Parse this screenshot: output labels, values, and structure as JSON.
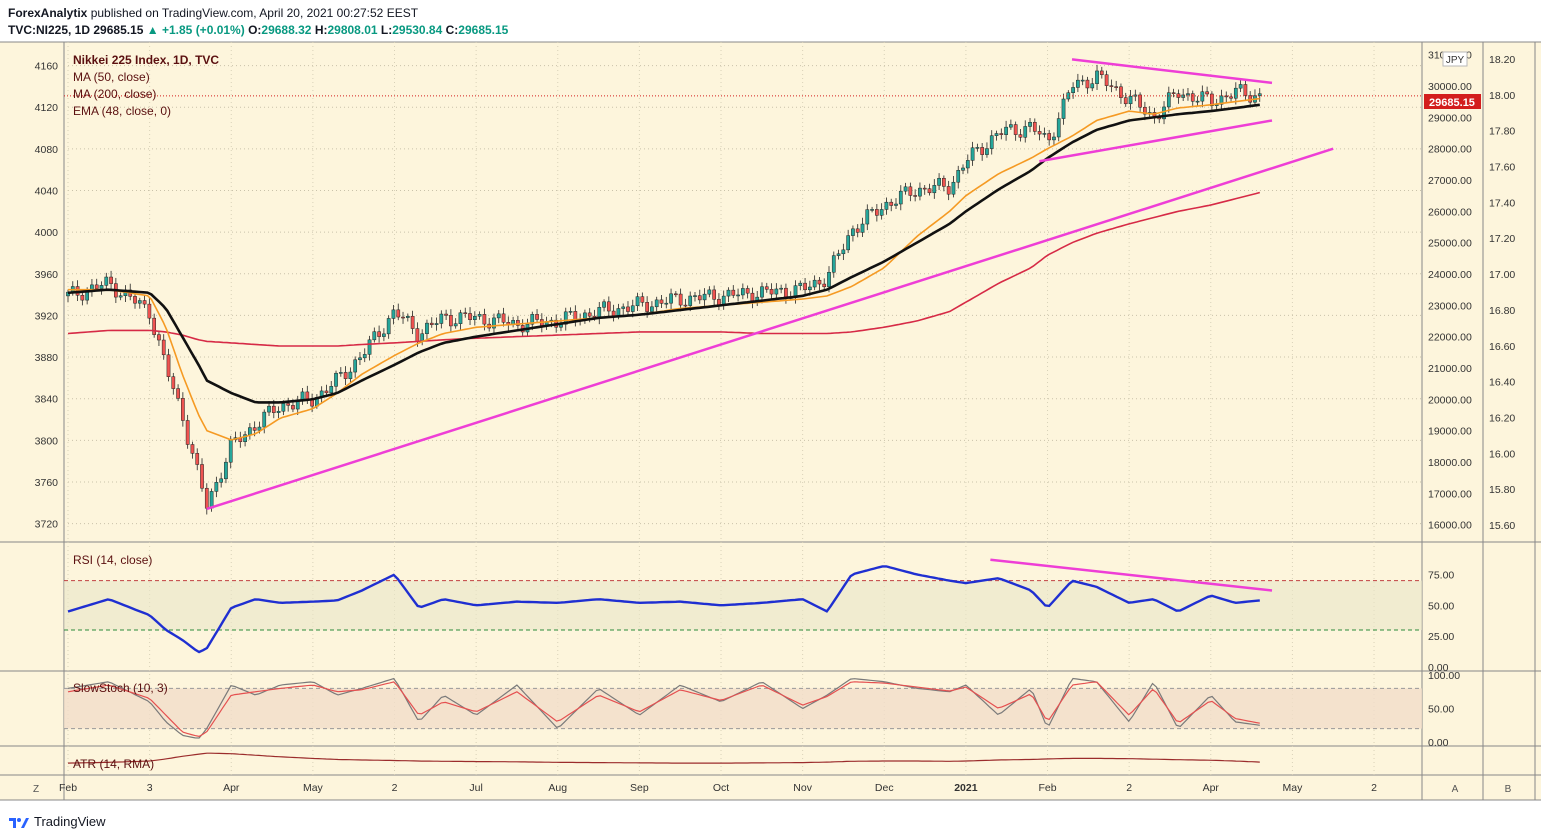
{
  "header": {
    "publisher": "ForexAnalytix",
    "published_line": "published on TradingView.com, April 20, 2021 00:27:52 EEST",
    "symbol": "TVC:NI225, 1D",
    "last": "29685.15",
    "change": "▲ +1.85 (+0.01%)",
    "o_label": "O:",
    "o": "29688.32",
    "h_label": "H:",
    "h": "29808.01",
    "l_label": "L:",
    "l": "29530.84",
    "c_label": "C:",
    "c": "29685.15"
  },
  "legend": {
    "title": "Nikkei 225 Index, 1D, TVC",
    "ma50": "MA (50, close)",
    "ma200": "MA (200, close)",
    "ema48": "EMA (48, close, 0)"
  },
  "panes": {
    "rsi_label": "RSI (14, close)",
    "stoch_label": "SlowStoch (10, 3)",
    "atr_label": "ATR (14, RMA)"
  },
  "price_badge": "29685.15",
  "currency": "JPY",
  "footer": {
    "brand": "TradingView"
  },
  "corner_labels": {
    "left": "Z",
    "right1": "A",
    "right2": "B"
  },
  "colors": {
    "background": "#fdf5dc",
    "bullish": "#26a69a",
    "bearish": "#ef5350",
    "ma50": "#f59a23",
    "ma200": "#d62a46",
    "ema48": "#111111",
    "trendline": "#ee3ed6",
    "rsi": "#1f2fd1",
    "stoch_k": "#7a7a7a",
    "stoch_d": "#e55050",
    "atr": "#9b2c2c",
    "badge": "#d31d1d"
  },
  "chart_data": {
    "type": "line",
    "title": "Nikkei 225 Index, 1D, TVC",
    "x_ticks": [
      "Feb",
      "3",
      "Apr",
      "May",
      "2",
      "Jul",
      "Aug",
      "Sep",
      "Oct",
      "Nov",
      "Dec",
      "2021",
      "Feb",
      "2",
      "Apr",
      "May",
      "2"
    ],
    "left_axis": {
      "ticks": [
        3720,
        3760,
        3800,
        3840,
        3880,
        3920,
        3960,
        4000,
        4040,
        4080,
        4120,
        4160
      ],
      "range": [
        3710,
        4175
      ]
    },
    "right_axis_price": {
      "ticks": [
        "16000.00",
        "17000.00",
        "18000.00",
        "19000.00",
        "20000.00",
        "21000.00",
        "22000.00",
        "23000.00",
        "24000.00",
        "25000.00",
        "26000.00",
        "27000.00",
        "28000.00",
        "29000.00",
        "30000.00",
        "31000.00"
      ],
      "range": [
        15700,
        31150
      ]
    },
    "right_axis_secondary": {
      "ticks": [
        "15.60",
        "15.80",
        "16.00",
        "16.20",
        "16.40",
        "16.60",
        "16.80",
        "17.00",
        "17.20",
        "17.40",
        "17.60",
        "17.80",
        "18.00",
        "18.20"
      ],
      "range": [
        15.55,
        18.25
      ]
    },
    "price_series": {
      "name": "NI225",
      "x_month_index": [
        0,
        0.5,
        1,
        1.2,
        1.4,
        1.6,
        1.7,
        2,
        2.3,
        2.6,
        3,
        3.3,
        3.6,
        4,
        4.3,
        4.6,
        5,
        5.5,
        6,
        6.5,
        7,
        7.5,
        8,
        8.5,
        9,
        9.3,
        9.6,
        10,
        10.4,
        10.8,
        11,
        11.4,
        11.8,
        12,
        12.3,
        12.6,
        13,
        13.3,
        13.6,
        14,
        14.3,
        14.6
      ],
      "close": [
        23300,
        23700,
        22800,
        21000,
        19500,
        17500,
        16600,
        18500,
        19200,
        19800,
        20000,
        20600,
        21400,
        22800,
        22100,
        22600,
        22600,
        22400,
        22500,
        22800,
        23000,
        23200,
        23300,
        23400,
        23500,
        23900,
        25400,
        26200,
        26700,
        26800,
        27600,
        28500,
        28700,
        28200,
        30000,
        30300,
        29600,
        29000,
        29800,
        29500,
        29800,
        29685
      ]
    },
    "ma50": {
      "name": "MA (50, close)",
      "values": [
        23500,
        23500,
        23300,
        22300,
        20800,
        19500,
        19000,
        18700,
        18900,
        19400,
        19700,
        20200,
        20800,
        21400,
        21800,
        22100,
        22300,
        22400,
        22500,
        22600,
        22700,
        22900,
        23000,
        23100,
        23200,
        23300,
        23600,
        24200,
        25200,
        26000,
        26500,
        27200,
        27700,
        28000,
        28400,
        28900,
        29200,
        29100,
        29300,
        29400,
        29500,
        29600
      ]
    },
    "ma200": {
      "name": "MA (200, close)",
      "values": [
        22100,
        22200,
        22200,
        22150,
        22050,
        21900,
        21850,
        21800,
        21750,
        21700,
        21700,
        21700,
        21750,
        21800,
        21850,
        21900,
        21950,
        22000,
        22050,
        22100,
        22150,
        22150,
        22150,
        22100,
        22100,
        22100,
        22150,
        22300,
        22500,
        22800,
        23100,
        23700,
        24200,
        24600,
        25000,
        25300,
        25600,
        25800,
        26000,
        26200,
        26400,
        26600
      ]
    },
    "ema48": {
      "name": "EMA (48, close, 0)",
      "values": [
        23400,
        23500,
        23400,
        22900,
        22000,
        21100,
        20600,
        20200,
        19900,
        19900,
        20000,
        20200,
        20600,
        21100,
        21500,
        21800,
        22000,
        22200,
        22400,
        22600,
        22700,
        22850,
        23000,
        23150,
        23300,
        23500,
        23900,
        24400,
        25000,
        25600,
        26000,
        26700,
        27300,
        27700,
        28200,
        28600,
        28900,
        29000,
        29100,
        29200,
        29300,
        29400
      ]
    },
    "rsi": {
      "name": "RSI (14, close)",
      "levels": [
        30,
        70
      ],
      "ticks": [
        "0.00",
        "25.00",
        "50.00",
        "75.00"
      ],
      "values": [
        45,
        55,
        42,
        30,
        22,
        12,
        15,
        48,
        55,
        52,
        53,
        54,
        62,
        75,
        48,
        55,
        50,
        53,
        52,
        55,
        52,
        53,
        50,
        52,
        55,
        45,
        75,
        82,
        75,
        70,
        68,
        72,
        62,
        48,
        70,
        65,
        52,
        55,
        45,
        58,
        52,
        54
      ]
    },
    "stoch": {
      "name": "SlowStoch (10, 3)",
      "levels": [
        20,
        80
      ],
      "ticks": [
        "0.00",
        "50.00",
        "100.00"
      ],
      "k": [
        80,
        90,
        60,
        30,
        10,
        5,
        20,
        85,
        70,
        85,
        90,
        70,
        80,
        95,
        30,
        70,
        40,
        85,
        20,
        80,
        40,
        85,
        60,
        90,
        50,
        70,
        95,
        90,
        80,
        75,
        85,
        40,
        80,
        20,
        95,
        90,
        30,
        90,
        20,
        70,
        30,
        25
      ],
      "d": [
        75,
        85,
        65,
        40,
        15,
        8,
        15,
        70,
        75,
        80,
        85,
        75,
        78,
        90,
        40,
        60,
        45,
        75,
        30,
        70,
        45,
        78,
        62,
        85,
        55,
        68,
        90,
        88,
        82,
        76,
        82,
        50,
        72,
        30,
        85,
        90,
        40,
        80,
        28,
        62,
        35,
        28
      ]
    },
    "atr": {
      "name": "ATR (14, RMA)",
      "values": [
        300,
        330,
        380,
        460,
        560,
        640,
        680,
        660,
        600,
        540,
        480,
        440,
        420,
        400,
        380,
        370,
        360,
        350,
        330,
        320,
        310,
        300,
        300,
        310,
        320,
        340,
        370,
        380,
        380,
        370,
        380,
        420,
        440,
        460,
        480,
        480,
        470,
        450,
        430,
        410,
        380,
        340
      ]
    },
    "trendlines": [
      {
        "name": "support",
        "points": [
          [
            1.7,
            16500
          ],
          [
            15.5,
            28000
          ]
        ]
      },
      {
        "name": "triangle-top",
        "points": [
          [
            12.3,
            30850
          ],
          [
            14.75,
            30100
          ]
        ]
      },
      {
        "name": "triangle-bottom",
        "points": [
          [
            11.9,
            27600
          ],
          [
            14.75,
            28900
          ]
        ]
      },
      {
        "name": "rsi-divergence",
        "points": [
          [
            11.3,
            87
          ],
          [
            14.75,
            62
          ]
        ]
      }
    ]
  }
}
